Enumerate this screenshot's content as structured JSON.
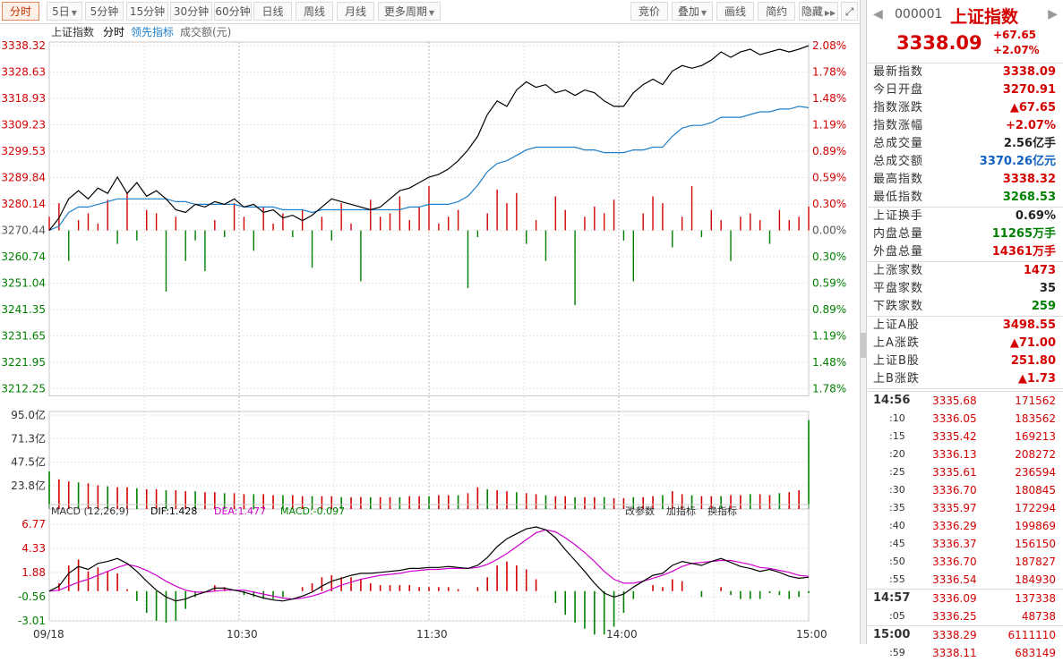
{
  "toolbar": {
    "tabs": [
      "分时",
      "5日",
      "5分钟",
      "15分钟",
      "30分钟",
      "60分钟",
      "日线",
      "周线",
      "月线",
      "更多周期"
    ],
    "right_buttons": [
      "竞价",
      "叠加",
      "画线",
      "简约",
      "隐藏"
    ]
  },
  "chart_header": {
    "index_name": "上证指数",
    "mode": "分时",
    "lead": "领先指标",
    "volume": "成交额(元)"
  },
  "colors": {
    "up": "#d40000",
    "down": "#008000",
    "price_line": "#000000",
    "avg_line": "#1f7fc8",
    "dif": "#000000",
    "dea": "#d000d0",
    "grid": "#e6e6e6"
  },
  "chart_data": [
    {
      "type": "line",
      "name": "price",
      "prev_close": 3270.44,
      "y_ticks": [
        3338.32,
        3328.63,
        3318.93,
        3309.23,
        3299.53,
        3289.84,
        3280.14,
        3270.44,
        3260.74,
        3251.04,
        3241.35,
        3231.65,
        3221.95,
        3212.25
      ],
      "pct_ticks_up": [
        "2.08%",
        "1.78%",
        "1.48%",
        "1.19%",
        "0.89%",
        "0.59%",
        "0.30%"
      ],
      "pct_zero": "0.00%",
      "pct_ticks_down": [
        "0.30%",
        "0.59%",
        "0.89%",
        "1.19%",
        "1.48%",
        "1.78%"
      ],
      "x_labels": [
        "09/18",
        "10:30",
        "11:30",
        "14:00",
        "15:00"
      ],
      "price": [
        3270.4,
        3275,
        3282,
        3285,
        3282,
        3286,
        3284,
        3290,
        3284,
        3288,
        3283,
        3285,
        3282,
        3278,
        3277,
        3280,
        3279,
        3281,
        3280,
        3282,
        3279,
        3280,
        3277,
        3278,
        3275,
        3276,
        3274,
        3276,
        3279,
        3282,
        3281,
        3280,
        3279,
        3278,
        3279,
        3282,
        3285,
        3286,
        3288,
        3290,
        3291,
        3293,
        3296,
        3300,
        3305,
        3313,
        3318,
        3316,
        3322,
        3325,
        3323,
        3324,
        3321,
        3322,
        3320,
        3322,
        3321,
        3318,
        3316,
        3316,
        3321,
        3324,
        3326,
        3324,
        3329,
        3331,
        3330,
        3331,
        3333,
        3336,
        3334,
        3336,
        3337,
        3335,
        3336,
        3337,
        3336,
        3337,
        3338.3
      ],
      "avg": [
        3270.4,
        3272,
        3277,
        3279,
        3279,
        3280,
        3281,
        3282,
        3282,
        3282,
        3282,
        3282,
        3282,
        3281,
        3281,
        3280,
        3280,
        3280,
        3280,
        3280,
        3279,
        3279,
        3279,
        3279,
        3278,
        3278,
        3278,
        3277,
        3278,
        3278,
        3278,
        3278,
        3278,
        3278,
        3278,
        3278,
        3278,
        3279,
        3279,
        3280,
        3280,
        3280,
        3281,
        3283,
        3287,
        3292,
        3295,
        3296,
        3298,
        3300,
        3301,
        3301,
        3301,
        3301,
        3301,
        3300,
        3300,
        3299,
        3299,
        3299,
        3300,
        3300,
        3301,
        3301,
        3305,
        3308,
        3309,
        3309,
        3310,
        3312,
        3312,
        3312,
        3313,
        3314,
        3314,
        3315,
        3315,
        3316,
        3315.5
      ]
    },
    {
      "type": "bar",
      "name": "lead_indicator",
      "values": [
        0.4,
        0.8,
        -0.9,
        0.3,
        0.5,
        0.2,
        0.9,
        -0.4,
        1.1,
        -0.3,
        0.6,
        0.5,
        -1.8,
        0.4,
        -0.9,
        -0.3,
        -1.2,
        0.3,
        -0.2,
        0.8,
        0.4,
        -0.6,
        0.7,
        0.2,
        0.5,
        -0.2,
        0.6,
        -1.1,
        0.4,
        -0.3,
        0.8,
        0.2,
        -1.5,
        0.9,
        0.4,
        0.5,
        1.0,
        0.3,
        0.7,
        1.3,
        0.2,
        0.4,
        0.6,
        -1.7,
        -0.2,
        0.5,
        1.2,
        0.8,
        1.1,
        -0.4,
        0.3,
        -0.9,
        1.0,
        0.6,
        -2.2,
        0.4,
        0.7,
        0.5,
        0.9,
        -0.3,
        -1.5,
        0.5,
        1.0,
        0.8,
        -0.5,
        0.4,
        1.3,
        -0.2,
        0.6,
        0.3,
        -0.9,
        0.4,
        0.5,
        0.3,
        -0.4,
        0.6,
        0.3,
        0.4,
        0.7
      ]
    },
    {
      "type": "bar",
      "name": "volume",
      "y_ticks": [
        "95.0亿",
        "71.3亿",
        "47.5亿",
        "23.8亿"
      ],
      "y_max": 95.0,
      "values": [
        38,
        30,
        28,
        27,
        26,
        24,
        23,
        22,
        22,
        21,
        20,
        20,
        19,
        19,
        18,
        18,
        17,
        17,
        16,
        16,
        15,
        15,
        15,
        14,
        14,
        14,
        13,
        13,
        13,
        13,
        12,
        12,
        12,
        12,
        12,
        12,
        12,
        13,
        13,
        13,
        14,
        14,
        14,
        16,
        22,
        20,
        19,
        18,
        17,
        16,
        15,
        14,
        13,
        13,
        12,
        12,
        12,
        12,
        11,
        11,
        12,
        12,
        13,
        14,
        18,
        15,
        14,
        13,
        13,
        13,
        14,
        14,
        15,
        15,
        14,
        16,
        17,
        19,
        90
      ]
    },
    {
      "type": "line",
      "name": "macd",
      "title": "MACD (12,26,9)",
      "dif_label": "DIF:1.428",
      "dea_label": "DEA:1.477",
      "macd_label": "MACD:-0.097",
      "y_ticks": [
        "6.77",
        "4.33",
        "1.88",
        "-0.56",
        "-3.01"
      ],
      "y_range": [
        -3.01,
        6.77
      ],
      "buttons": [
        "改参数",
        "加指标",
        "换指标"
      ],
      "dif": [
        0,
        0.5,
        1.8,
        2.5,
        2.2,
        2.8,
        3.0,
        3.3,
        2.8,
        2.0,
        1.0,
        0.1,
        -0.6,
        -1.0,
        -0.8,
        -0.4,
        -0.1,
        0.3,
        0.3,
        0.1,
        -0.1,
        -0.4,
        -0.7,
        -0.9,
        -1.0,
        -0.8,
        -0.5,
        -0.1,
        0.5,
        1.0,
        1.3,
        1.6,
        1.8,
        1.8,
        1.9,
        2.0,
        2.1,
        2.3,
        2.3,
        2.4,
        2.4,
        2.5,
        2.4,
        2.3,
        2.6,
        3.4,
        4.5,
        5.3,
        5.8,
        6.3,
        6.5,
        6.2,
        5.4,
        4.2,
        3.1,
        2.0,
        0.8,
        -0.2,
        -0.6,
        -0.3,
        0.4,
        1.0,
        1.6,
        1.8,
        2.6,
        3.0,
        2.8,
        2.6,
        3.0,
        3.3,
        2.9,
        2.5,
        2.3,
        2.0,
        2.2,
        1.9,
        1.5,
        1.3,
        1.4
      ],
      "dea": [
        0,
        0.1,
        0.5,
        0.9,
        1.2,
        1.6,
        2.0,
        2.4,
        2.7,
        2.5,
        2.1,
        1.6,
        1.0,
        0.5,
        0.1,
        -0.1,
        -0.1,
        0.0,
        0.1,
        0.1,
        0.1,
        -0.1,
        -0.3,
        -0.5,
        -0.7,
        -0.8,
        -0.7,
        -0.5,
        -0.2,
        0.2,
        0.6,
        0.9,
        1.2,
        1.4,
        1.6,
        1.7,
        1.8,
        2.0,
        2.1,
        2.2,
        2.2,
        2.3,
        2.3,
        2.3,
        2.4,
        2.7,
        3.2,
        3.8,
        4.5,
        5.2,
        5.9,
        6.2,
        6.0,
        5.4,
        4.7,
        3.9,
        3.0,
        2.0,
        1.2,
        0.8,
        0.8,
        1.0,
        1.3,
        1.6,
        2.0,
        2.5,
        2.8,
        2.9,
        3.0,
        3.1,
        3.1,
        2.9,
        2.7,
        2.4,
        2.3,
        2.1,
        1.9,
        1.6,
        1.5
      ]
    }
  ],
  "quote": {
    "code": "000001",
    "name": "上证指数",
    "price": "3338.09",
    "change": "+67.65",
    "change_pct": "+2.07%",
    "groups": [
      [
        {
          "k": "最新指数",
          "v": "3338.09",
          "c": "red"
        },
        {
          "k": "今日开盘",
          "v": "3270.91",
          "c": "red"
        },
        {
          "k": "指数涨跌",
          "v": "▲67.65",
          "c": "red"
        },
        {
          "k": "指数涨幅",
          "v": "+2.07%",
          "c": "red"
        },
        {
          "k": "总成交量",
          "v": "2.56亿手",
          "c": "blk"
        },
        {
          "k": "总成交额",
          "v": "3370.26亿元",
          "c": "blu"
        },
        {
          "k": "最高指数",
          "v": "3338.32",
          "c": "red"
        },
        {
          "k": "最低指数",
          "v": "3268.53",
          "c": "grn"
        }
      ],
      [
        {
          "k": "上证换手",
          "v": "0.69%",
          "c": "blk"
        },
        {
          "k": "内盘总量",
          "v": "11265万手",
          "c": "grn"
        },
        {
          "k": "外盘总量",
          "v": "14361万手",
          "c": "red"
        }
      ],
      [
        {
          "k": "上涨家数",
          "v": "1473",
          "c": "red"
        },
        {
          "k": "平盘家数",
          "v": "35",
          "c": "blk"
        },
        {
          "k": "下跌家数",
          "v": "259",
          "c": "grn"
        }
      ],
      [
        {
          "k": "上证A股",
          "v": "3498.55",
          "c": "red"
        },
        {
          "k": "上A涨跌",
          "v": "▲71.00",
          "c": "red"
        },
        {
          "k": "上证B股",
          "v": "251.80",
          "c": "red"
        },
        {
          "k": "上B涨跌",
          "v": "▲1.73",
          "c": "red"
        }
      ]
    ],
    "ticks": [
      {
        "t": "14:56",
        "p": "3335.68",
        "v": "171562",
        "major": true
      },
      {
        "t": ":10",
        "p": "3336.05",
        "v": "183562"
      },
      {
        "t": ":15",
        "p": "3335.42",
        "v": "169213"
      },
      {
        "t": ":20",
        "p": "3336.13",
        "v": "208272"
      },
      {
        "t": ":25",
        "p": "3335.61",
        "v": "236594"
      },
      {
        "t": ":30",
        "p": "3336.70",
        "v": "180845"
      },
      {
        "t": ":35",
        "p": "3335.97",
        "v": "172294"
      },
      {
        "t": ":40",
        "p": "3336.29",
        "v": "199869"
      },
      {
        "t": ":45",
        "p": "3336.37",
        "v": "156150"
      },
      {
        "t": ":50",
        "p": "3336.70",
        "v": "187827"
      },
      {
        "t": ":55",
        "p": "3336.54",
        "v": "184930"
      },
      {
        "t": "14:57",
        "p": "3336.09",
        "v": "137338",
        "major": true
      },
      {
        "t": ":05",
        "p": "3336.25",
        "v": "48738"
      },
      {
        "t": "15:00",
        "p": "3338.29",
        "v": "6111110",
        "major": true
      },
      {
        "t": ":59",
        "p": "3338.11",
        "v": "683149"
      }
    ]
  }
}
